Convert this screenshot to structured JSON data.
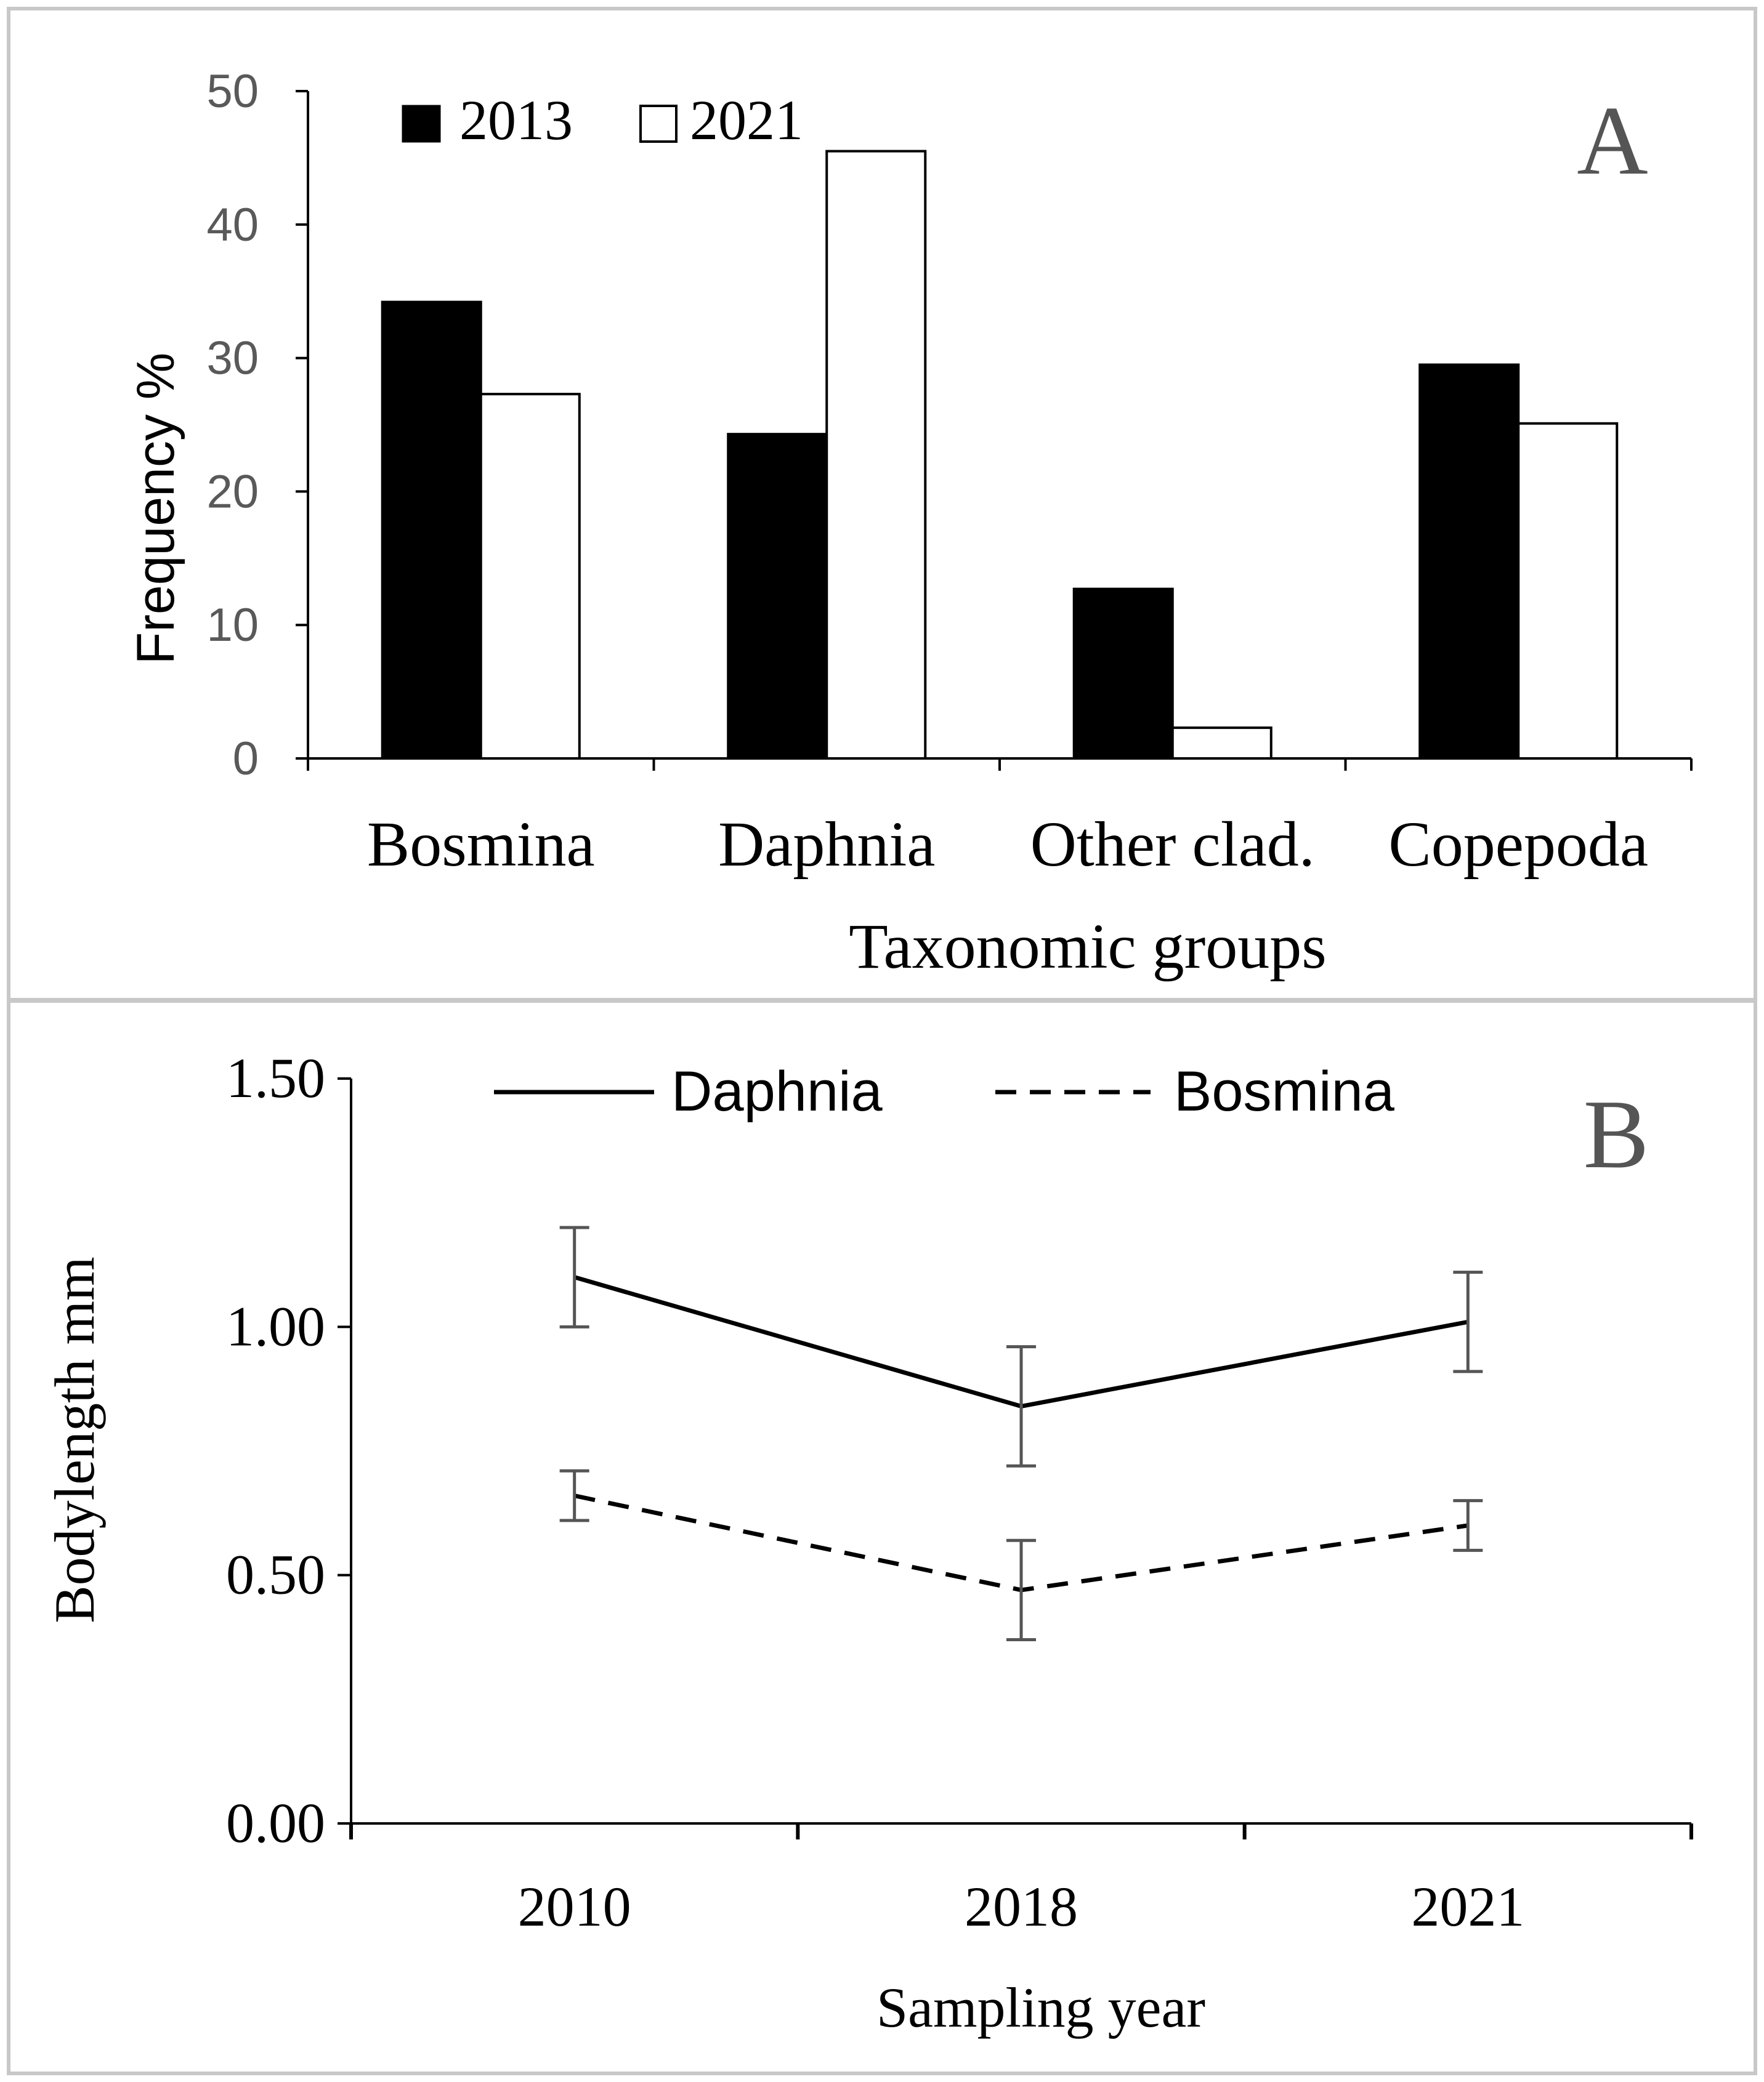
{
  "chart_data": [
    {
      "type": "bar",
      "panel_label": "A",
      "title": "",
      "xlabel": "Taxonomic groups",
      "ylabel": "Frequency %",
      "categories": [
        "Bosmina",
        "Daphnia",
        "Other clad.",
        "Copepoda"
      ],
      "series": [
        {
          "name": "2013",
          "color": "#000000",
          "values": [
            34.2,
            24.3,
            12.7,
            29.5
          ]
        },
        {
          "name": "2021",
          "color": "#ffffff",
          "values": [
            27.3,
            45.5,
            2.3,
            25.1
          ]
        }
      ],
      "ylim": [
        0,
        50
      ],
      "yticks": [
        "0",
        "10",
        "20",
        "30",
        "40",
        "50"
      ],
      "legend": "top-left",
      "grid": false
    },
    {
      "type": "line",
      "panel_label": "B",
      "title": "",
      "xlabel": "Sampling year",
      "ylabel": "Bodylength mm",
      "categories": [
        "2010",
        "2018",
        "2021"
      ],
      "series": [
        {
          "name": "Daphnia",
          "style": "solid",
          "values": [
            1.1,
            0.84,
            1.01
          ],
          "errors": [
            0.1,
            0.12,
            0.1
          ]
        },
        {
          "name": "Bosmina",
          "style": "dashed",
          "values": [
            0.66,
            0.47,
            0.6
          ],
          "errors": [
            0.05,
            0.1,
            0.05
          ]
        }
      ],
      "ylim": [
        0,
        1.5
      ],
      "yticks": [
        "0.00",
        "0.50",
        "1.00",
        "1.50"
      ],
      "legend": "top-center",
      "grid": false
    }
  ]
}
